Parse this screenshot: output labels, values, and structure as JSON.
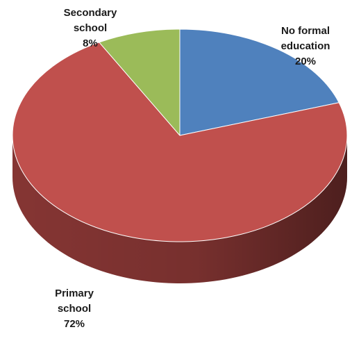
{
  "chart_data": {
    "type": "pie",
    "style": "3d",
    "title": "",
    "slices": [
      {
        "label_lines": [
          "No formal",
          "education"
        ],
        "value": 20,
        "value_label": "20%",
        "color": "#4F81BD",
        "side_color": "#385D8A"
      },
      {
        "label_lines": [
          "Primary",
          "school"
        ],
        "value": 72,
        "value_label": "72%",
        "color": "#C0504D",
        "side_color": "#8C3836"
      },
      {
        "label_lines": [
          "Secondary",
          "school"
        ],
        "value": 8,
        "value_label": "8%",
        "color": "#9BBB59",
        "side_color": "#71893F"
      }
    ],
    "start_angle_deg": 0,
    "direction": "clockwise",
    "legend": "none",
    "data_labels": "outside"
  }
}
